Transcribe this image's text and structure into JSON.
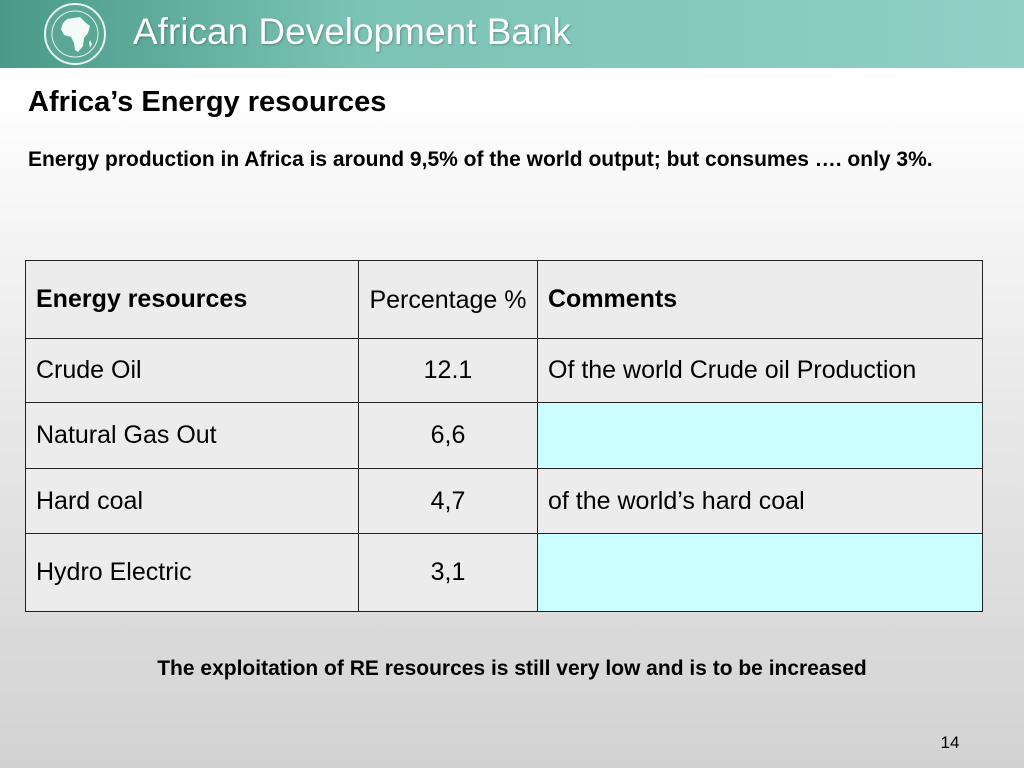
{
  "header": {
    "bank_name": "African Development Bank",
    "background_color": "#7bc3b5",
    "logo_icon": "afdb-africa-map-seal-icon"
  },
  "slide": {
    "title": "Africa’s Energy resources",
    "subtitle": "Energy production in Africa is around 9,5% of the world output; but consumes ….  only 3%.",
    "footer_note": "The exploitation of RE resources is still very low and is to be increased",
    "page_number": "14"
  },
  "table": {
    "headers": [
      "Energy resources",
      "Percentage %",
      "Comments"
    ],
    "rows": [
      {
        "resource": "Crude Oil",
        "percentage": "12.1",
        "comment": "Of the world Crude oil Production"
      },
      {
        "resource": "Natural Gas Out",
        "percentage": "6,6",
        "comment": ""
      },
      {
        "resource": "Hard coal",
        "percentage": "4,7",
        "comment": "of the world’s hard coal"
      },
      {
        "resource": "Hydro Electric",
        "percentage": "3,1",
        "comment": ""
      }
    ],
    "highlight_color": "#ccffff"
  }
}
